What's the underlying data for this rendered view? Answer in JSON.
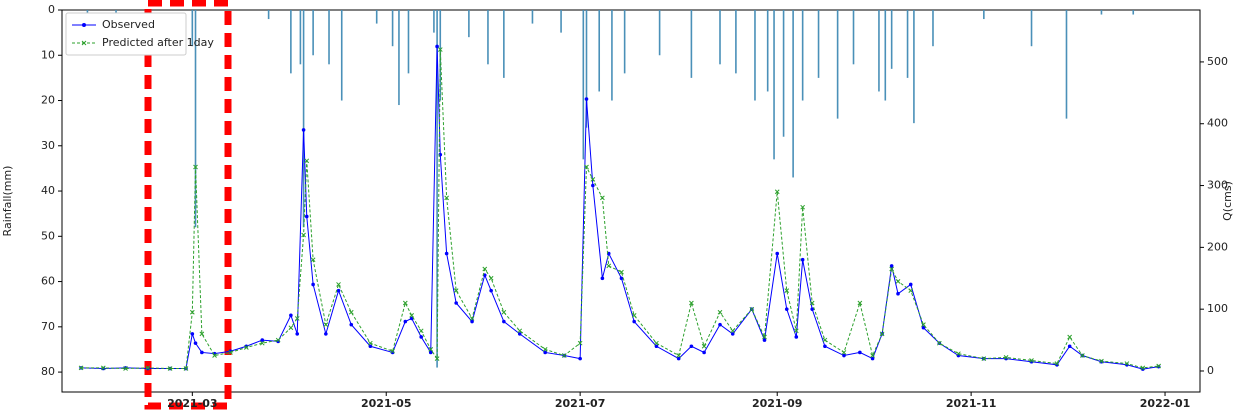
{
  "chart_data": {
    "type": "line",
    "ylabel": "Rainfall(mm)",
    "y2label": "Q(cms)",
    "xlim": [
      "2021-01-19",
      "2022-01-12"
    ],
    "xticks": [
      {
        "value": "2021-03-01",
        "label": "2021-03"
      },
      {
        "value": "2021-05-01",
        "label": "2021-05"
      },
      {
        "value": "2021-07-01",
        "label": "2021-07"
      },
      {
        "value": "2021-09-01",
        "label": "2021-09"
      },
      {
        "value": "2021-11-01",
        "label": "2021-11"
      },
      {
        "value": "2022-01-01",
        "label": "2022-01"
      }
    ],
    "ylim": [
      84.4,
      0
    ],
    "yticks": [
      0,
      10,
      20,
      30,
      40,
      50,
      60,
      70,
      80
    ],
    "y2lim": [
      -34,
      584
    ],
    "y2ticks": [
      0,
      100,
      200,
      300,
      400,
      500
    ],
    "legend": "upper left",
    "x": [
      "2021-01-25",
      "2021-02-01",
      "2021-02-08",
      "2021-02-15",
      "2021-02-22",
      "2021-02-27",
      "2021-03-01",
      "2021-03-02",
      "2021-03-04",
      "2021-03-08",
      "2021-03-13",
      "2021-03-18",
      "2021-03-23",
      "2021-03-28",
      "2021-04-01",
      "2021-04-03",
      "2021-04-05",
      "2021-04-06",
      "2021-04-08",
      "2021-04-12",
      "2021-04-16",
      "2021-04-20",
      "2021-04-26",
      "2021-05-03",
      "2021-05-07",
      "2021-05-09",
      "2021-05-12",
      "2021-05-15",
      "2021-05-17",
      "2021-05-18",
      "2021-05-20",
      "2021-05-23",
      "2021-05-28",
      "2021-06-01",
      "2021-06-03",
      "2021-06-07",
      "2021-06-12",
      "2021-06-20",
      "2021-06-26",
      "2021-07-01",
      "2021-07-03",
      "2021-07-05",
      "2021-07-08",
      "2021-07-10",
      "2021-07-14",
      "2021-07-18",
      "2021-07-25",
      "2021-08-01",
      "2021-08-05",
      "2021-08-09",
      "2021-08-14",
      "2021-08-18",
      "2021-08-24",
      "2021-08-28",
      "2021-09-01",
      "2021-09-04",
      "2021-09-07",
      "2021-09-09",
      "2021-09-12",
      "2021-09-16",
      "2021-09-22",
      "2021-09-27",
      "2021-10-01",
      "2021-10-04",
      "2021-10-07",
      "2021-10-09",
      "2021-10-13",
      "2021-10-17",
      "2021-10-22",
      "2021-10-28",
      "2021-11-05",
      "2021-11-12",
      "2021-11-20",
      "2021-11-28",
      "2021-12-02",
      "2021-12-06",
      "2021-12-12",
      "2021-12-20",
      "2021-12-25",
      "2021-12-30"
    ],
    "series": [
      {
        "type": "bar",
        "axis": "y",
        "color": "#4a90b8",
        "x": [
          "2021-01-27",
          "2021-02-05",
          "2021-03-01",
          "2021-03-02",
          "2021-03-25",
          "2021-04-01",
          "2021-04-04",
          "2021-04-05",
          "2021-04-08",
          "2021-04-13",
          "2021-04-17",
          "2021-04-28",
          "2021-05-03",
          "2021-05-05",
          "2021-05-08",
          "2021-05-16",
          "2021-05-17",
          "2021-05-18",
          "2021-05-27",
          "2021-06-02",
          "2021-06-07",
          "2021-06-16",
          "2021-06-25",
          "2021-07-02",
          "2021-07-03",
          "2021-07-07",
          "2021-07-11",
          "2021-07-15",
          "2021-07-26",
          "2021-08-05",
          "2021-08-14",
          "2021-08-19",
          "2021-08-25",
          "2021-08-29",
          "2021-08-31",
          "2021-09-03",
          "2021-09-06",
          "2021-09-09",
          "2021-09-14",
          "2021-09-20",
          "2021-09-25",
          "2021-10-03",
          "2021-10-05",
          "2021-10-07",
          "2021-10-12",
          "2021-10-14",
          "2021-10-20",
          "2021-11-05",
          "2021-11-20",
          "2021-12-01",
          "2021-12-12",
          "2021-12-22"
        ],
        "values": [
          1,
          1,
          8,
          48,
          2,
          14,
          12,
          48,
          10,
          12,
          20,
          3,
          8,
          21,
          14,
          5,
          79,
          20,
          6,
          12,
          15,
          3,
          5,
          33,
          26,
          18,
          20,
          14,
          10,
          15,
          12,
          14,
          20,
          18,
          33,
          28,
          37,
          20,
          15,
          24,
          12,
          18,
          20,
          13,
          15,
          25,
          8,
          2,
          8,
          24,
          1,
          1
        ]
      },
      {
        "name": "Observed",
        "axis": "y2",
        "color": "#0000ff",
        "values": [
          5,
          4,
          5,
          4,
          4,
          4,
          60,
          45,
          30,
          28,
          32,
          40,
          50,
          48,
          90,
          60,
          390,
          250,
          140,
          60,
          130,
          75,
          40,
          30,
          80,
          85,
          55,
          30,
          525,
          350,
          190,
          110,
          80,
          155,
          130,
          80,
          60,
          30,
          25,
          20,
          440,
          300,
          150,
          190,
          150,
          80,
          40,
          20,
          40,
          30,
          75,
          60,
          100,
          50,
          190,
          100,
          55,
          180,
          100,
          40,
          25,
          30,
          20,
          60,
          170,
          125,
          140,
          70,
          45,
          25,
          20,
          20,
          15,
          10,
          40,
          25,
          15,
          10,
          3,
          7
        ]
      },
      {
        "name": "Predicted after 1day",
        "axis": "y2",
        "color": "#2ca02c",
        "values": [
          5,
          5,
          4,
          5,
          4,
          4,
          95,
          330,
          60,
          25,
          30,
          38,
          45,
          50,
          70,
          85,
          220,
          340,
          180,
          75,
          140,
          95,
          45,
          32,
          110,
          90,
          65,
          35,
          20,
          520,
          280,
          130,
          85,
          165,
          150,
          95,
          65,
          35,
          25,
          45,
          330,
          310,
          280,
          170,
          160,
          90,
          45,
          25,
          110,
          40,
          95,
          65,
          100,
          55,
          290,
          130,
          65,
          265,
          110,
          50,
          30,
          110,
          25,
          60,
          165,
          145,
          130,
          75,
          45,
          28,
          20,
          22,
          17,
          12,
          55,
          25,
          16,
          12,
          5,
          8
        ]
      }
    ]
  }
}
